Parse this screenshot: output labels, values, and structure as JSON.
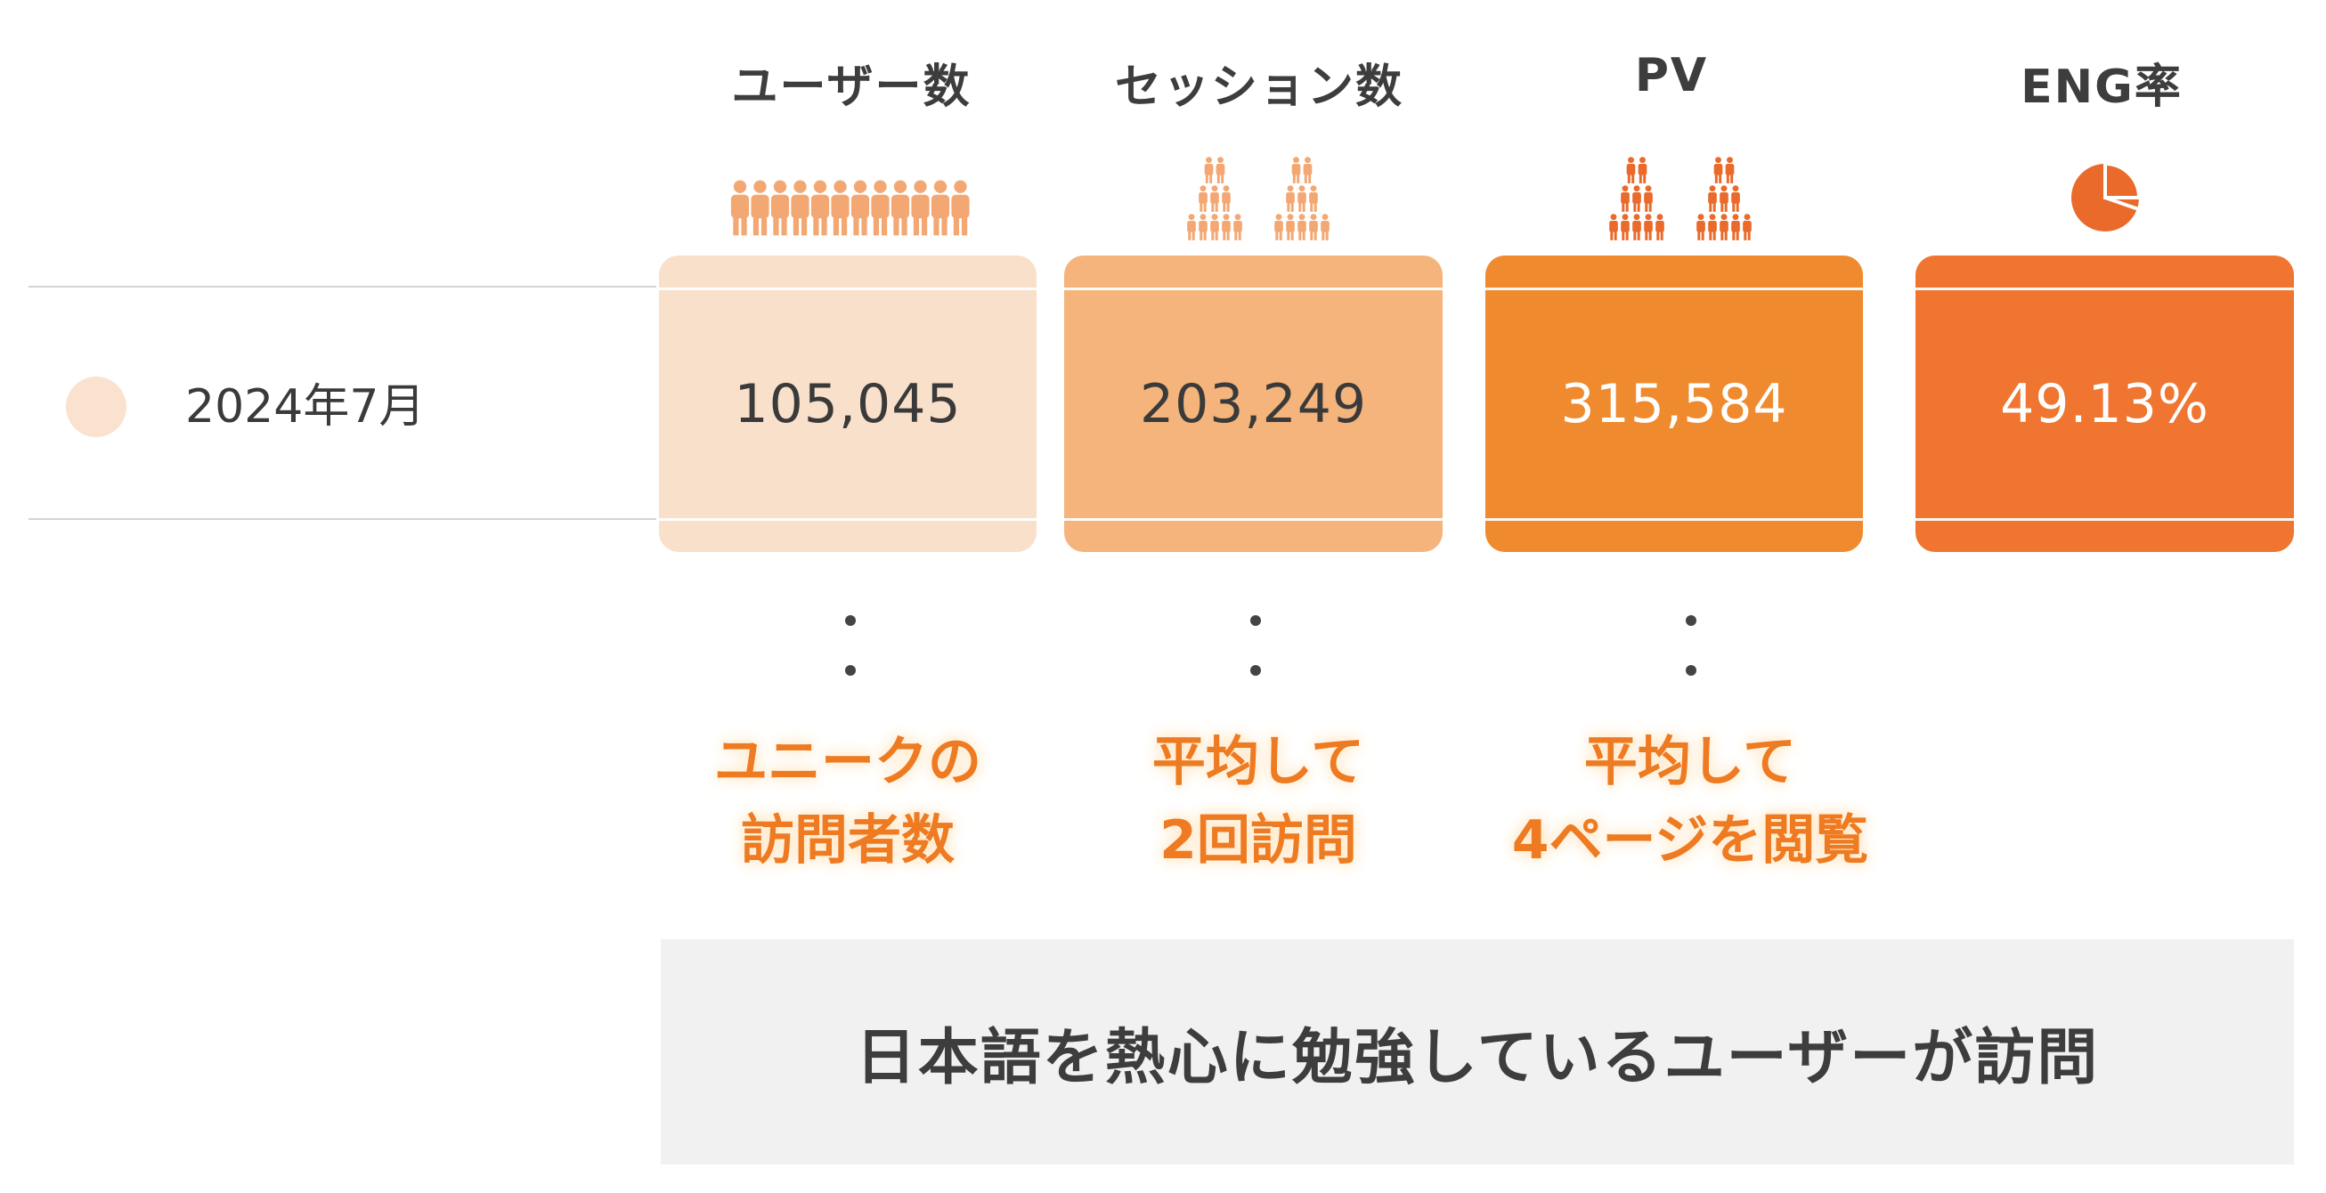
{
  "chart_data": {
    "type": "table",
    "rows": [
      {
        "label": "2024年7月",
        "marker_color": "#fbe2cf"
      }
    ],
    "columns": [
      {
        "header": "ユーザー数",
        "value": 105045,
        "display": "105,045",
        "color": "#f9e0cb",
        "text_color": "#3a3a3a",
        "icon": "people-row-icon",
        "icon_color": "#f3a874",
        "note": [
          "ユニークの",
          "訪問者数"
        ]
      },
      {
        "header": "セッション数",
        "value": 203249,
        "display": "203,249",
        "color": "#f4b47b",
        "text_color": "#3a3a3a",
        "icon": "people-pyramid-icon",
        "icon_color": "#f3a874",
        "note": [
          "平均して",
          "2回訪問"
        ]
      },
      {
        "header": "PV",
        "value": 315584,
        "display": "315,584",
        "color": "#ef8a2e",
        "text_color": "#ffffff",
        "icon": "people-pyramid-icon",
        "icon_color": "#e96a2a",
        "note": [
          "平均して",
          "4ページを閲覧"
        ]
      },
      {
        "header": "ENG率",
        "value": 49.13,
        "display": "49.13%",
        "color": "#ef7530",
        "text_color": "#ffffff",
        "icon": "pie-chart-icon",
        "icon_color": "#e96a2a",
        "note": []
      }
    ],
    "summary": "日本語を熱心に勉強しているユーザーが訪問"
  }
}
